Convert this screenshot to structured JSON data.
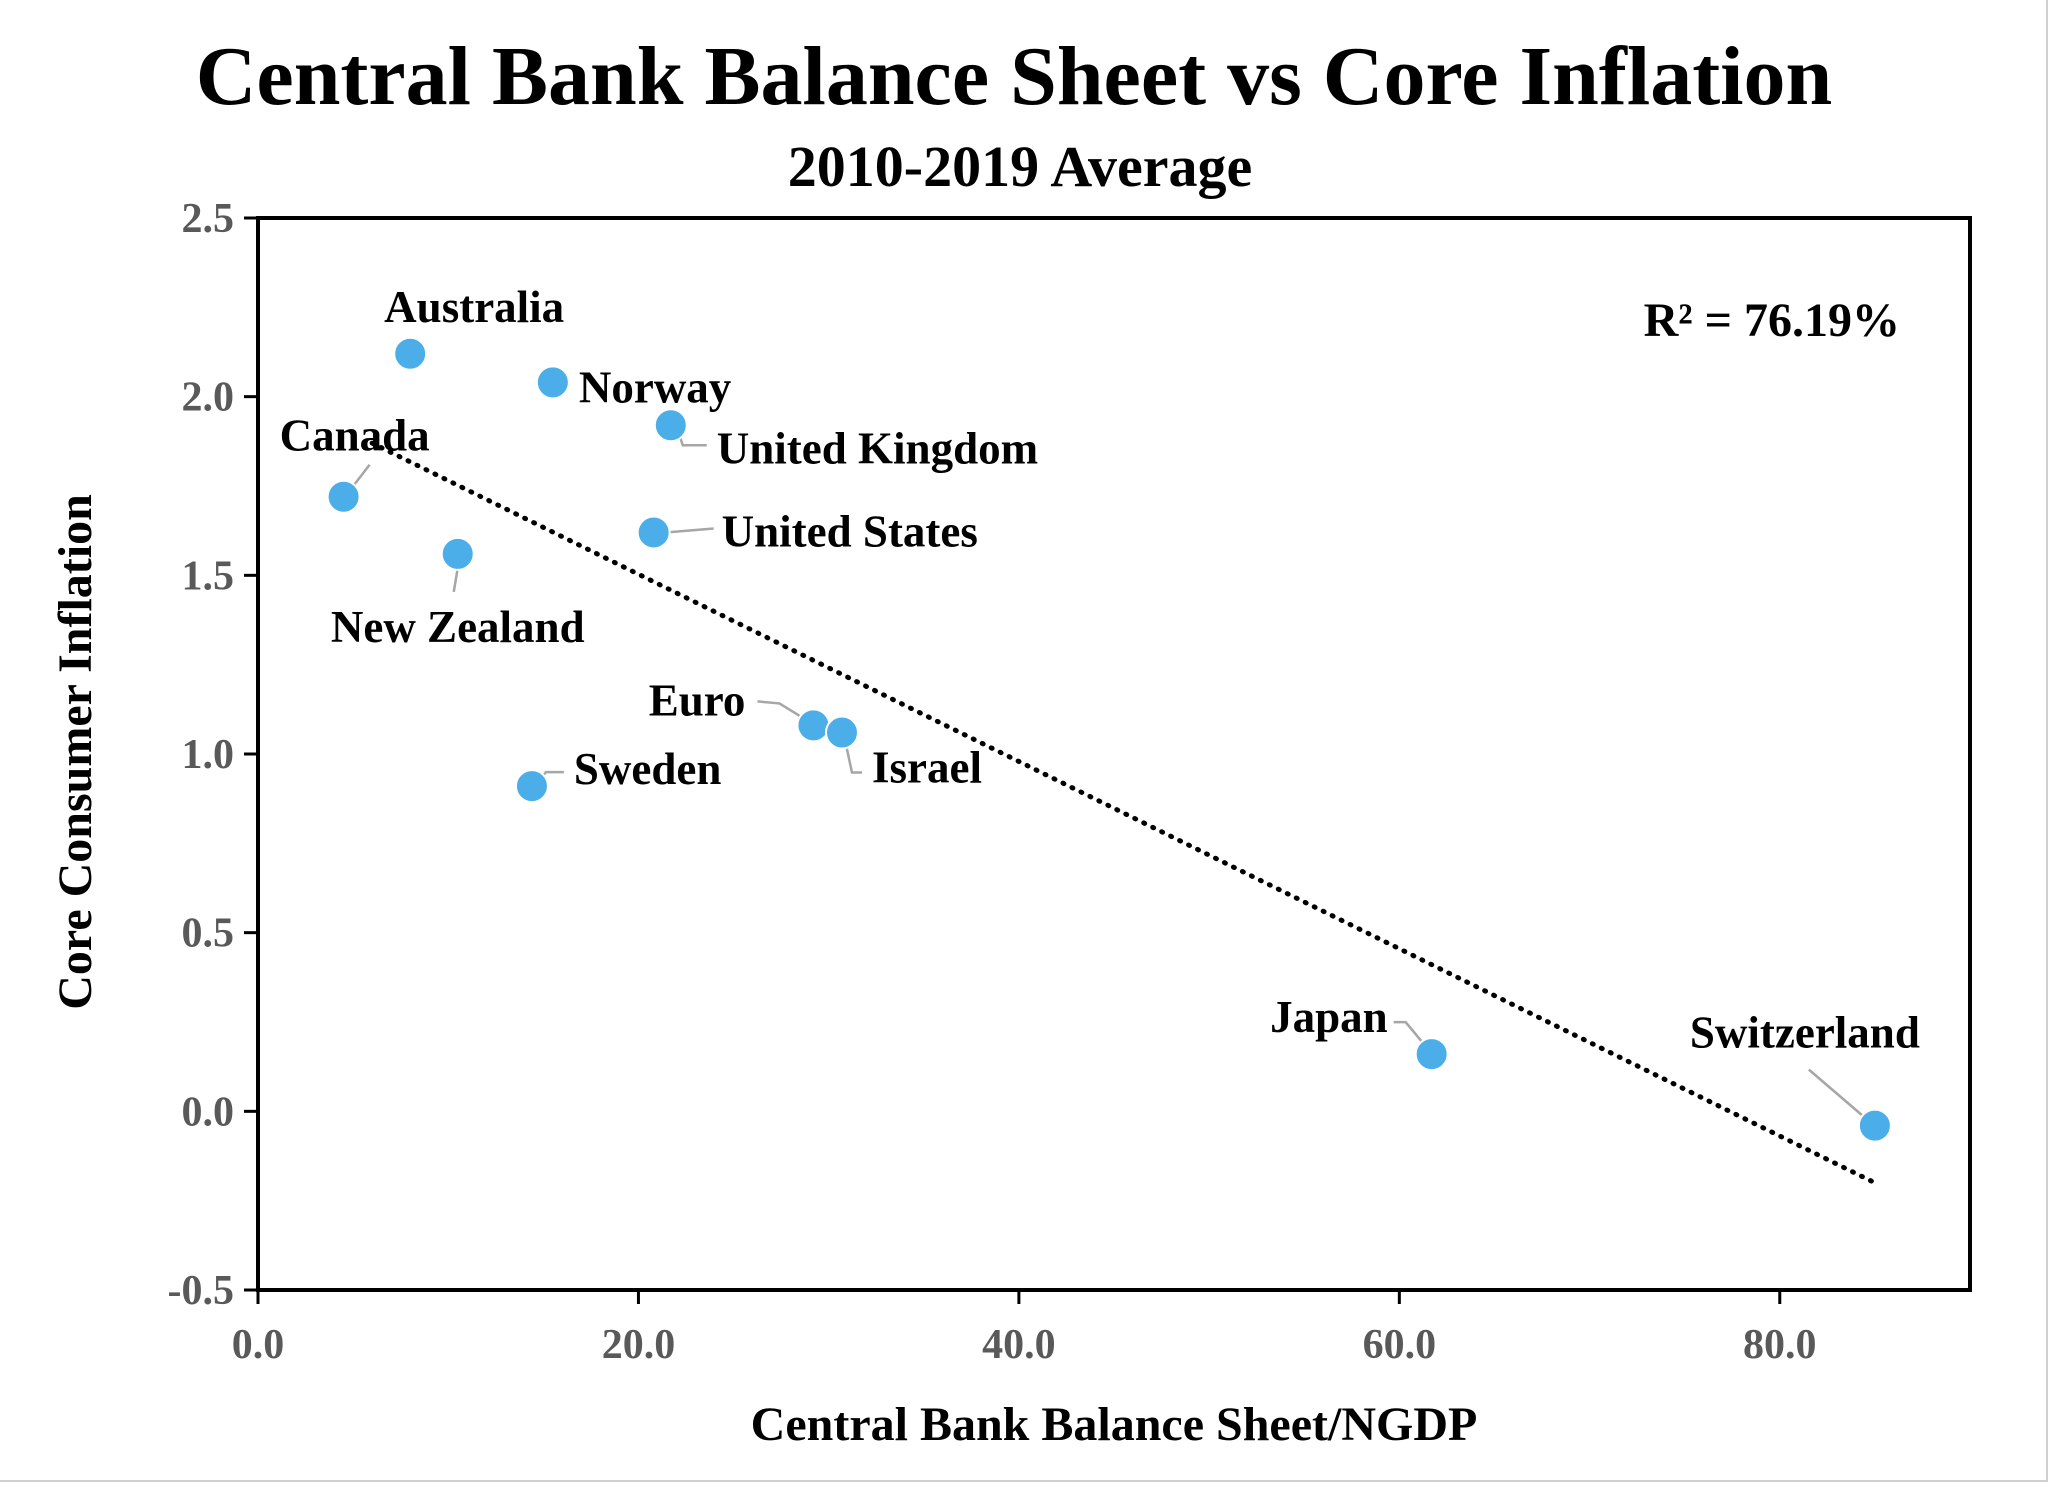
{
  "colors": {
    "marker": "#4baee8",
    "marker_stroke": "#ffffff",
    "leader": "#a6a6a6",
    "trendline": "#000000",
    "tick_text": "#595959",
    "axis": "#000000"
  },
  "chart_data": {
    "type": "scatter",
    "title": "Central Bank Balance Sheet vs Core Inflation",
    "subtitle": "2010-2019 Average",
    "xlabel": "Central Bank Balance Sheet/NGDP",
    "ylabel": "Core Consumer Inflation",
    "xlim": [
      0,
      90
    ],
    "ylim": [
      -0.5,
      2.5
    ],
    "x_ticks": [
      0,
      20,
      40,
      60,
      80
    ],
    "x_tick_labels": [
      "0.0",
      "20.0",
      "40.0",
      "60.0",
      "80.0"
    ],
    "y_ticks": [
      -0.5,
      0,
      0.5,
      1,
      1.5,
      2,
      2.5
    ],
    "y_tick_labels": [
      "-0.5",
      "0.0",
      "0.5",
      "1.0",
      "1.5",
      "2.0",
      "2.5"
    ],
    "grid": false,
    "points": [
      {
        "name": "Australia",
        "x": 8.0,
        "y": 2.12
      },
      {
        "name": "Norway",
        "x": 15.5,
        "y": 2.04
      },
      {
        "name": "United Kingdom",
        "x": 21.7,
        "y": 1.92
      },
      {
        "name": "Canada",
        "x": 4.5,
        "y": 1.72
      },
      {
        "name": "United States",
        "x": 20.8,
        "y": 1.62
      },
      {
        "name": "New Zealand",
        "x": 10.5,
        "y": 1.56
      },
      {
        "name": "Euro",
        "x": 29.2,
        "y": 1.08
      },
      {
        "name": "Israel",
        "x": 30.7,
        "y": 1.06
      },
      {
        "name": "Sweden",
        "x": 14.4,
        "y": 0.91
      },
      {
        "name": "Japan",
        "x": 61.7,
        "y": 0.16
      },
      {
        "name": "Switzerland",
        "x": 85.0,
        "y": -0.04
      }
    ],
    "trendline": {
      "type": "linear",
      "style": "dotted",
      "x": [
        6.0,
        85.0
      ],
      "y": [
        1.87,
        -0.2
      ]
    },
    "annotations": [
      {
        "text": "R² = 76.19%",
        "placement": "top-right"
      }
    ]
  }
}
